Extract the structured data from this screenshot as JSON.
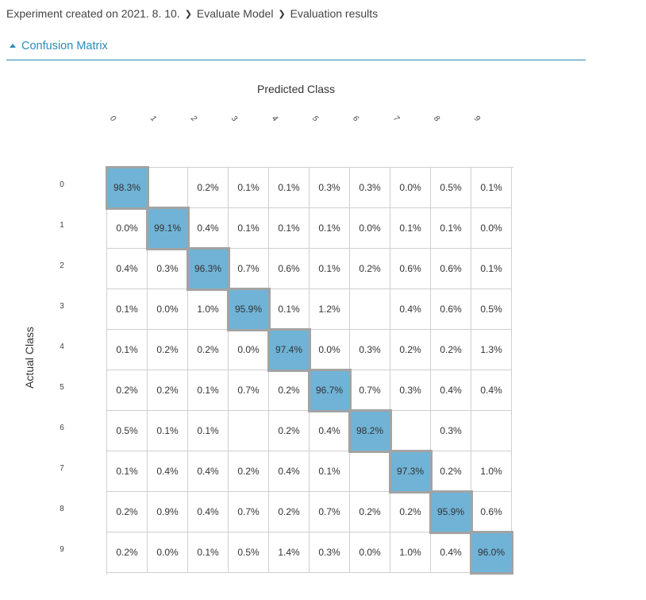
{
  "breadcrumb": [
    "Experiment created on 2021. 8. 10.",
    "Evaluate Model",
    "Evaluation results"
  ],
  "section": {
    "title": "Confusion Matrix"
  },
  "matrix": {
    "predicted_label": "Predicted Class",
    "actual_label": "Actual Class",
    "classes": [
      "0",
      "1",
      "2",
      "3",
      "4",
      "5",
      "6",
      "7",
      "8",
      "9"
    ],
    "diag_color": "#70b3d6",
    "rows": [
      [
        "98.3%",
        "",
        "0.2%",
        "0.1%",
        "0.1%",
        "0.3%",
        "0.3%",
        "0.0%",
        "0.5%",
        "0.1%"
      ],
      [
        "0.0%",
        "99.1%",
        "0.4%",
        "0.1%",
        "0.1%",
        "0.1%",
        "0.0%",
        "0.1%",
        "0.1%",
        "0.0%"
      ],
      [
        "0.4%",
        "0.3%",
        "96.3%",
        "0.7%",
        "0.6%",
        "0.1%",
        "0.2%",
        "0.6%",
        "0.6%",
        "0.1%"
      ],
      [
        "0.1%",
        "0.0%",
        "1.0%",
        "95.9%",
        "0.1%",
        "1.2%",
        "",
        "0.4%",
        "0.6%",
        "0.5%"
      ],
      [
        "0.1%",
        "0.2%",
        "0.2%",
        "0.0%",
        "97.4%",
        "0.0%",
        "0.3%",
        "0.2%",
        "0.2%",
        "1.3%"
      ],
      [
        "0.2%",
        "0.2%",
        "0.1%",
        "0.7%",
        "0.2%",
        "96.7%",
        "0.7%",
        "0.3%",
        "0.4%",
        "0.4%"
      ],
      [
        "0.5%",
        "0.1%",
        "0.1%",
        "",
        "0.2%",
        "0.4%",
        "98.2%",
        "",
        "0.3%",
        ""
      ],
      [
        "0.1%",
        "0.4%",
        "0.4%",
        "0.2%",
        "0.4%",
        "0.1%",
        "",
        "97.3%",
        "0.2%",
        "1.0%"
      ],
      [
        "0.2%",
        "0.9%",
        "0.4%",
        "0.7%",
        "0.2%",
        "0.7%",
        "0.2%",
        "0.2%",
        "95.9%",
        "0.6%"
      ],
      [
        "0.2%",
        "0.0%",
        "0.1%",
        "0.5%",
        "1.4%",
        "0.3%",
        "0.0%",
        "1.0%",
        "0.4%",
        "96.0%"
      ]
    ]
  }
}
